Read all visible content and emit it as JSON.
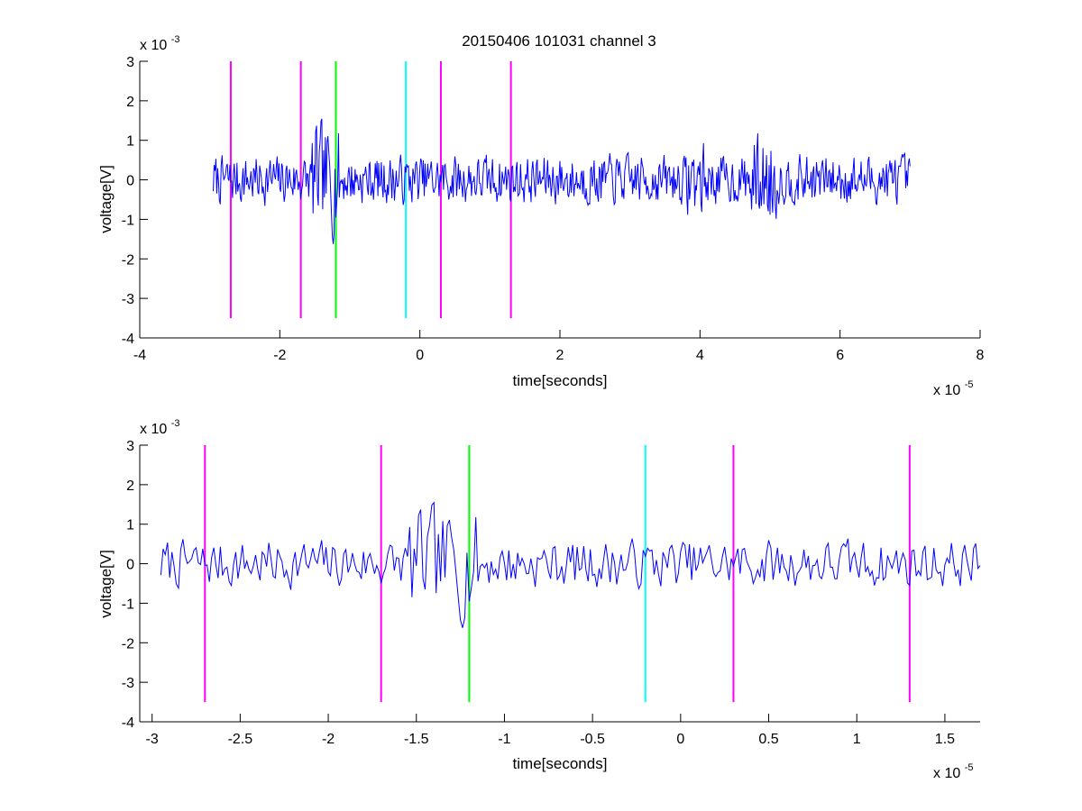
{
  "figure": {
    "title": "20150406 101031 channel 3"
  },
  "colors": {
    "signal": "#0000ff",
    "magenta": "#ff00ff",
    "green": "#00ff00",
    "cyan": "#00ffff",
    "axis": "#000000"
  },
  "chart_data": [
    {
      "type": "line",
      "title": "20150406 101031 channel 3",
      "xlabel": "time[seconds]",
      "ylabel": "voltage[V]",
      "x_exponent_label": "x 10",
      "x_exponent": "-5",
      "y_exponent_label": "x 10",
      "y_exponent": "-3",
      "xlim": [
        -4,
        8
      ],
      "ylim": [
        -4,
        3
      ],
      "xticks": [
        -4,
        -2,
        0,
        2,
        4,
        6,
        8
      ],
      "xtick_labels": [
        "-4",
        "-2",
        "0",
        "2",
        "4",
        "6",
        "8"
      ],
      "yticks": [
        -4,
        -3,
        -2,
        -1,
        0,
        1,
        2,
        3
      ],
      "ytick_labels": [
        "-4",
        "-3",
        "-2",
        "-1",
        "0",
        "1",
        "2",
        "3"
      ],
      "grid": false,
      "series": [
        {
          "x_range": [
            -2.95,
            7.0
          ],
          "seed": 7,
          "color": "#0000ff"
        }
      ],
      "markers": [
        {
          "x": -2.7,
          "color": "#ff00ff",
          "y_range": [
            -3.5,
            3
          ]
        },
        {
          "x": -1.7,
          "color": "#ff00ff",
          "y_range": [
            -3.5,
            3
          ]
        },
        {
          "x": -1.2,
          "color": "#00ff00",
          "y_range": [
            -3.5,
            3
          ]
        },
        {
          "x": -0.2,
          "color": "#00ffff",
          "y_range": [
            -3.5,
            3
          ]
        },
        {
          "x": 0.3,
          "color": "#ff00ff",
          "y_range": [
            -3.5,
            3
          ]
        },
        {
          "x": 1.3,
          "color": "#ff00ff",
          "y_range": [
            -3.5,
            3
          ]
        }
      ]
    },
    {
      "type": "line",
      "title": "",
      "xlabel": "time[seconds]",
      "ylabel": "voltage[V]",
      "x_exponent_label": "x 10",
      "x_exponent": "-5",
      "y_exponent_label": "x 10",
      "y_exponent": "-3",
      "xlim": [
        -3.07,
        1.7
      ],
      "ylim": [
        -4,
        3
      ],
      "xticks": [
        -3,
        -2.5,
        -2,
        -1.5,
        -1,
        -0.5,
        0,
        0.5,
        1,
        1.5
      ],
      "xtick_labels": [
        "-3",
        "-2.5",
        "-2",
        "-1.5",
        "-1",
        "-0.5",
        "0",
        "0.5",
        "1",
        "1.5"
      ],
      "yticks": [
        -4,
        -3,
        -2,
        -1,
        0,
        1,
        2,
        3
      ],
      "ytick_labels": [
        "-4",
        "-3",
        "-2",
        "-1",
        "0",
        "1",
        "2",
        "3"
      ],
      "grid": false,
      "series": [
        {
          "x_range": [
            -2.95,
            1.7
          ],
          "seed": 7,
          "color": "#0000ff"
        }
      ],
      "markers": [
        {
          "x": -2.7,
          "color": "#ff00ff",
          "y_range": [
            -3.5,
            3
          ]
        },
        {
          "x": -1.7,
          "color": "#ff00ff",
          "y_range": [
            -3.5,
            3
          ]
        },
        {
          "x": -1.2,
          "color": "#00ff00",
          "y_range": [
            -3.5,
            3
          ]
        },
        {
          "x": -0.2,
          "color": "#00ffff",
          "y_range": [
            -3.5,
            3
          ]
        },
        {
          "x": 0.3,
          "color": "#ff00ff",
          "y_range": [
            -3.5,
            3
          ]
        },
        {
          "x": 1.3,
          "color": "#ff00ff",
          "y_range": [
            -3.5,
            3
          ]
        }
      ]
    }
  ]
}
